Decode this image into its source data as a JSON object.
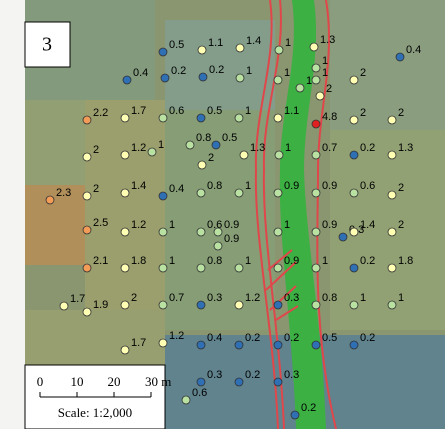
{
  "panel_label": "3",
  "points": [
    0.5,
    1.1,
    1.4,
    1,
    1.3,
    0.4,
    1,
    1,
    0.4,
    0.2,
    0.2,
    1,
    1,
    1,
    2,
    2.2,
    1.7,
    0.6,
    0.5,
    1,
    1.1,
    4.8,
    2,
    2,
    2,
    2,
    1.2,
    1,
    0.8,
    0.5,
    2,
    1.3,
    1,
    0.7,
    0.2,
    1.3,
    2.3,
    2,
    1.4,
    0.4,
    0.8,
    1,
    0.9,
    0.9,
    0.6,
    2,
    2.5,
    1.2,
    1,
    0.6,
    0.9,
    0.9,
    1,
    0.9,
    0.3,
    1.4,
    2,
    2.1,
    1.8,
    1,
    0.8,
    1,
    0.9,
    1,
    0.2,
    1.8,
    1.7,
    1.9,
    2,
    0.7,
    0.3,
    1.2,
    0.3,
    0.8,
    1,
    1,
    1.7,
    1.2,
    0.4,
    0.2,
    0.2,
    0.5,
    0.2,
    0.3,
    0.2,
    0.3,
    0.6,
    0.2
  ],
  "scale_bar": {
    "ticks": [
      "0",
      "10",
      "20",
      "30 m"
    ],
    "caption": "Scale: 1:2,000"
  }
}
